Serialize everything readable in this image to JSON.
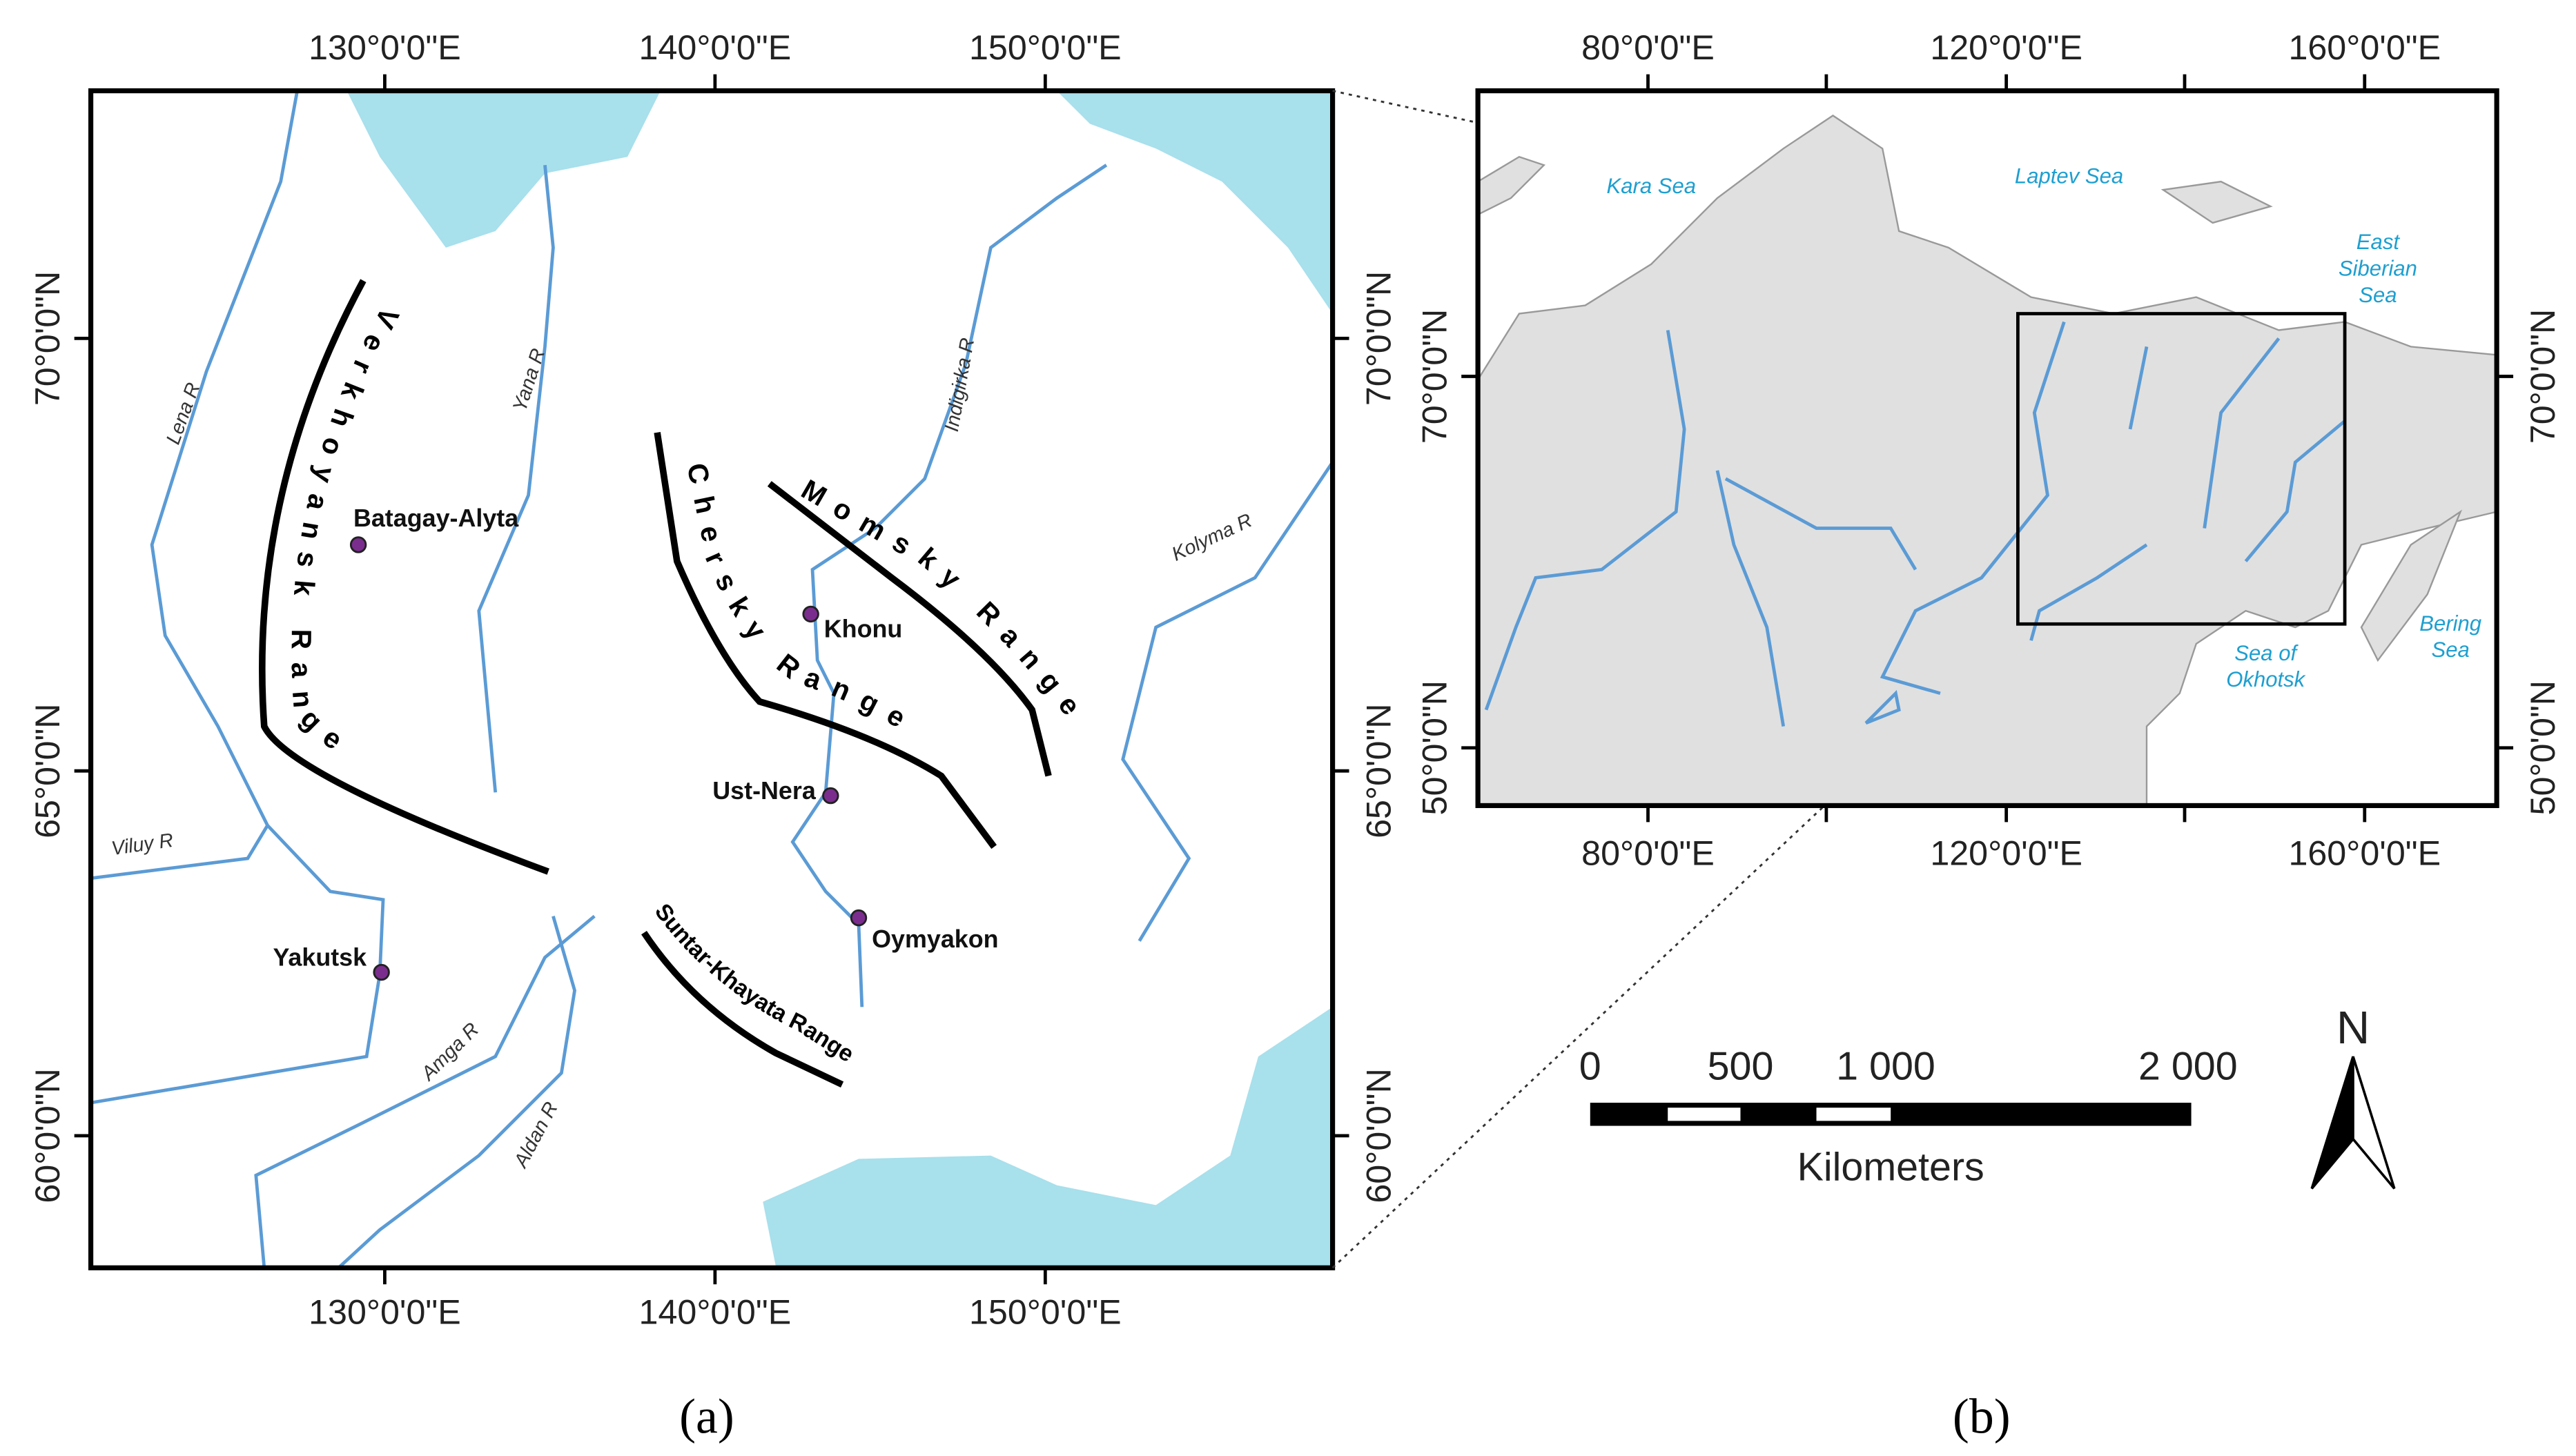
{
  "panel_a": {
    "lon_labels": [
      "130°0'0\"E",
      "140°0'0\"E",
      "150°0'0\"E"
    ],
    "lat_labels": [
      "70°0'0\"N",
      "65°0'0\"N",
      "60°0'0\"N"
    ],
    "rivers": [
      "Lena R",
      "Yana R",
      "Indigirka R",
      "Kolyma R",
      "Viluy R",
      "Amga R",
      "Aldan R"
    ],
    "ranges": [
      "Verkhoyansk Range",
      "Chersky Range",
      "Momsky Range",
      "Suntar-Khayata Range"
    ],
    "settlements": [
      "Batagay-Alyta",
      "Khonu",
      "Ust-Nera",
      "Oymyakon",
      "Yakutsk"
    ],
    "caption": "(a)"
  },
  "panel_b": {
    "lon_labels": [
      "80°0'0\"E",
      "120°0'0\"E",
      "160°0'0\"E"
    ],
    "lat_labels": [
      "70°0'0\"N",
      "50°0'0\"N"
    ],
    "seas": {
      "kara": [
        "Kara Sea"
      ],
      "laptev": [
        "Laptev Sea"
      ],
      "east_siberian": [
        "East",
        "Siberian",
        "Sea"
      ],
      "okhotsk": [
        "Sea of",
        "Okhotsk"
      ],
      "bering": [
        "Bering",
        "Sea"
      ]
    },
    "scale_labels": [
      "0",
      "500",
      "1 000",
      "2 000"
    ],
    "scale_unit": "Kilometers",
    "north": "N",
    "caption": "(b)"
  }
}
